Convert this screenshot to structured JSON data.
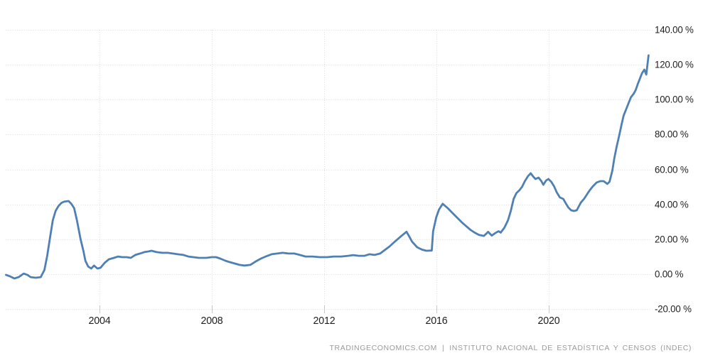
{
  "attribution": {
    "left": "TRADINGECONOMICS.COM",
    "separator": "|",
    "right": "INSTITUTO NACIONAL DE ESTADÍSTICA Y CENSOS (INDEC)"
  },
  "chart_data": {
    "type": "line",
    "grid": true,
    "legend": "none",
    "title": "",
    "xlabel": "",
    "ylabel": "",
    "x_range": [
      2000.65,
      2023.7
    ],
    "y_range": [
      -20,
      140
    ],
    "x_axis": {
      "tick_values": [
        2004,
        2008,
        2012,
        2016,
        2020
      ],
      "tick_labels": [
        "2004",
        "2008",
        "2012",
        "2016",
        "2020"
      ]
    },
    "y_axis": {
      "tick_values": [
        140,
        120,
        100,
        80,
        60,
        40,
        20,
        0,
        -20
      ],
      "tick_labels": [
        "140.00 %",
        "120.00 %",
        "100.00 %",
        "80.00 %",
        "60.00 %",
        "40.00 %",
        "20.00 %",
        "0.00 %",
        "-20.00 %"
      ]
    },
    "colors": {
      "line": "#4e80b4",
      "grid": "#dcdcdc",
      "tick_mark": "#c8c8c8",
      "tick_label": "#1f1f1f",
      "attribution": "#9a9a9a",
      "background": "#ffffff"
    },
    "series": [
      {
        "name": "inflation-rate-percent-yoy",
        "points": [
          [
            2000.66,
            -0.4
          ],
          [
            2000.81,
            -1.3
          ],
          [
            2000.96,
            -2.5
          ],
          [
            2001.11,
            -1.7
          ],
          [
            2001.29,
            0.3
          ],
          [
            2001.42,
            -0.4
          ],
          [
            2001.54,
            -1.7
          ],
          [
            2001.72,
            -2.1
          ],
          [
            2001.9,
            -1.7
          ],
          [
            2002.03,
            2.4
          ],
          [
            2002.13,
            10.5
          ],
          [
            2002.23,
            20.7
          ],
          [
            2002.33,
            30.9
          ],
          [
            2002.43,
            36.2
          ],
          [
            2002.53,
            39.0
          ],
          [
            2002.63,
            40.7
          ],
          [
            2002.73,
            41.5
          ],
          [
            2002.89,
            41.9
          ],
          [
            2002.99,
            40.3
          ],
          [
            2003.09,
            37.8
          ],
          [
            2003.19,
            30.9
          ],
          [
            2003.32,
            19.9
          ],
          [
            2003.42,
            13.4
          ],
          [
            2003.49,
            7.7
          ],
          [
            2003.59,
            4.4
          ],
          [
            2003.7,
            3.2
          ],
          [
            2003.8,
            4.9
          ],
          [
            2003.92,
            3.2
          ],
          [
            2004.03,
            3.6
          ],
          [
            2004.18,
            6.5
          ],
          [
            2004.33,
            8.5
          ],
          [
            2004.51,
            9.3
          ],
          [
            2004.66,
            10.1
          ],
          [
            2004.81,
            9.7
          ],
          [
            2004.96,
            9.7
          ],
          [
            2005.11,
            9.3
          ],
          [
            2005.27,
            11.0
          ],
          [
            2005.44,
            11.8
          ],
          [
            2005.59,
            12.6
          ],
          [
            2005.75,
            13.0
          ],
          [
            2005.85,
            13.4
          ],
          [
            2006.03,
            12.6
          ],
          [
            2006.23,
            12.2
          ],
          [
            2006.43,
            12.2
          ],
          [
            2006.61,
            11.8
          ],
          [
            2006.78,
            11.4
          ],
          [
            2006.99,
            11.0
          ],
          [
            2007.16,
            10.1
          ],
          [
            2007.34,
            9.7
          ],
          [
            2007.54,
            9.3
          ],
          [
            2007.8,
            9.3
          ],
          [
            2008.0,
            9.7
          ],
          [
            2008.15,
            9.7
          ],
          [
            2008.3,
            8.9
          ],
          [
            2008.48,
            7.7
          ],
          [
            2008.63,
            6.9
          ],
          [
            2008.81,
            6.1
          ],
          [
            2008.99,
            5.3
          ],
          [
            2009.16,
            4.9
          ],
          [
            2009.37,
            5.3
          ],
          [
            2009.57,
            7.3
          ],
          [
            2009.75,
            8.9
          ],
          [
            2009.92,
            10.1
          ],
          [
            2010.13,
            11.4
          ],
          [
            2010.33,
            11.8
          ],
          [
            2010.53,
            12.2
          ],
          [
            2010.73,
            11.8
          ],
          [
            2010.94,
            11.8
          ],
          [
            2011.14,
            11.0
          ],
          [
            2011.34,
            10.1
          ],
          [
            2011.59,
            10.1
          ],
          [
            2011.85,
            9.7
          ],
          [
            2012.1,
            9.7
          ],
          [
            2012.35,
            10.1
          ],
          [
            2012.61,
            10.1
          ],
          [
            2012.86,
            10.5
          ],
          [
            2013.04,
            10.9
          ],
          [
            2013.24,
            10.5
          ],
          [
            2013.44,
            10.5
          ],
          [
            2013.62,
            11.4
          ],
          [
            2013.8,
            11.0
          ],
          [
            2014.0,
            11.8
          ],
          [
            2014.13,
            13.4
          ],
          [
            2014.33,
            15.8
          ],
          [
            2014.53,
            18.7
          ],
          [
            2014.73,
            21.5
          ],
          [
            2014.94,
            24.3
          ],
          [
            2015.04,
            21.5
          ],
          [
            2015.14,
            18.6
          ],
          [
            2015.32,
            15.4
          ],
          [
            2015.5,
            14.0
          ],
          [
            2015.65,
            13.4
          ],
          [
            2015.84,
            13.5
          ],
          [
            2015.89,
            24.5
          ],
          [
            2016.0,
            32.5
          ],
          [
            2016.1,
            37.0
          ],
          [
            2016.23,
            40.3
          ],
          [
            2016.41,
            37.8
          ],
          [
            2016.58,
            35.0
          ],
          [
            2016.76,
            32.1
          ],
          [
            2016.91,
            29.7
          ],
          [
            2017.06,
            27.6
          ],
          [
            2017.22,
            25.4
          ],
          [
            2017.37,
            23.8
          ],
          [
            2017.52,
            22.5
          ],
          [
            2017.7,
            21.9
          ],
          [
            2017.85,
            24.2
          ],
          [
            2017.98,
            22.1
          ],
          [
            2018.1,
            23.5
          ],
          [
            2018.22,
            24.6
          ],
          [
            2018.3,
            23.8
          ],
          [
            2018.43,
            26.6
          ],
          [
            2018.56,
            30.9
          ],
          [
            2018.66,
            36.2
          ],
          [
            2018.76,
            43.1
          ],
          [
            2018.86,
            46.4
          ],
          [
            2018.96,
            48.0
          ],
          [
            2019.06,
            50.0
          ],
          [
            2019.16,
            53.3
          ],
          [
            2019.27,
            56.1
          ],
          [
            2019.37,
            57.8
          ],
          [
            2019.47,
            55.7
          ],
          [
            2019.54,
            54.5
          ],
          [
            2019.65,
            55.3
          ],
          [
            2019.75,
            53.3
          ],
          [
            2019.82,
            51.2
          ],
          [
            2019.92,
            53.7
          ],
          [
            2020.0,
            54.5
          ],
          [
            2020.1,
            52.9
          ],
          [
            2020.2,
            50.4
          ],
          [
            2020.3,
            46.8
          ],
          [
            2020.41,
            43.9
          ],
          [
            2020.53,
            43.1
          ],
          [
            2020.63,
            40.3
          ],
          [
            2020.71,
            38.2
          ],
          [
            2020.81,
            36.6
          ],
          [
            2020.91,
            36.2
          ],
          [
            2021.01,
            36.6
          ],
          [
            2021.09,
            39.0
          ],
          [
            2021.16,
            41.1
          ],
          [
            2021.27,
            43.1
          ],
          [
            2021.37,
            45.6
          ],
          [
            2021.47,
            48.0
          ],
          [
            2021.59,
            50.4
          ],
          [
            2021.72,
            52.5
          ],
          [
            2021.85,
            53.3
          ],
          [
            2021.97,
            53.3
          ],
          [
            2022.1,
            51.7
          ],
          [
            2022.18,
            52.9
          ],
          [
            2022.28,
            59.4
          ],
          [
            2022.35,
            66.3
          ],
          [
            2022.43,
            72.8
          ],
          [
            2022.53,
            79.8
          ],
          [
            2022.61,
            85.9
          ],
          [
            2022.68,
            90.8
          ],
          [
            2022.78,
            94.8
          ],
          [
            2022.86,
            98.1
          ],
          [
            2022.94,
            101.3
          ],
          [
            2023.04,
            103.4
          ],
          [
            2023.11,
            105.4
          ],
          [
            2023.19,
            109.1
          ],
          [
            2023.27,
            112.3
          ],
          [
            2023.34,
            115.2
          ],
          [
            2023.42,
            117.2
          ],
          [
            2023.49,
            114.4
          ],
          [
            2023.57,
            125.4
          ]
        ]
      }
    ]
  }
}
